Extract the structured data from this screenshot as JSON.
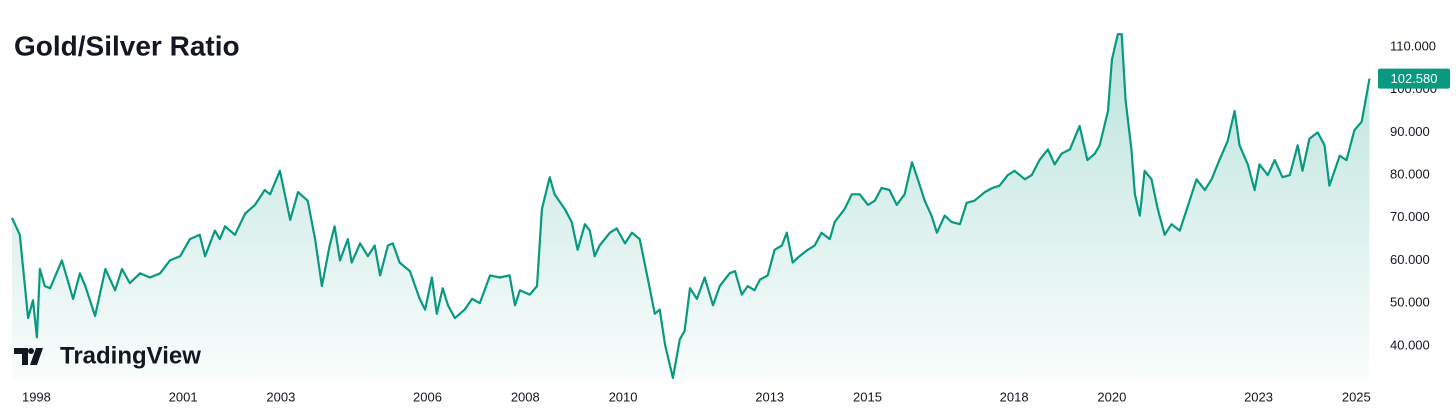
{
  "chart_data": {
    "type": "area",
    "title": "Gold/Silver Ratio",
    "watermark": "TradingView",
    "color": "#089981",
    "x": [
      1997.5,
      1997.66,
      1997.83,
      1997.93,
      1998.01,
      1998.07,
      1998.17,
      1998.28,
      1998.52,
      1998.75,
      1998.89,
      1999.0,
      1999.2,
      1999.41,
      1999.61,
      1999.75,
      1999.91,
      2000.12,
      2000.32,
      2000.53,
      2000.73,
      2000.94,
      2001.14,
      2001.34,
      2001.45,
      2001.65,
      2001.75,
      2001.86,
      2002.06,
      2002.27,
      2002.47,
      2002.67,
      2002.78,
      2002.98,
      2003.19,
      2003.35,
      2003.55,
      2003.7,
      2003.84,
      2004.0,
      2004.1,
      2004.21,
      2004.37,
      2004.45,
      2004.62,
      2004.78,
      2004.92,
      2005.03,
      2005.19,
      2005.29,
      2005.43,
      2005.64,
      2005.84,
      2005.95,
      2006.09,
      2006.19,
      2006.31,
      2006.42,
      2006.56,
      2006.76,
      2006.91,
      2007.07,
      2007.28,
      2007.48,
      2007.68,
      2007.79,
      2007.89,
      2008.09,
      2008.24,
      2008.34,
      2008.5,
      2008.6,
      2008.81,
      2008.95,
      2009.07,
      2009.22,
      2009.32,
      2009.42,
      2009.52,
      2009.73,
      2009.87,
      2010.04,
      2010.18,
      2010.34,
      2010.51,
      2010.65,
      2010.75,
      2010.86,
      2011.02,
      2011.16,
      2011.26,
      2011.37,
      2011.51,
      2011.67,
      2011.84,
      2011.98,
      2012.18,
      2012.29,
      2012.43,
      2012.55,
      2012.69,
      2012.8,
      2012.96,
      2013.1,
      2013.25,
      2013.35,
      2013.47,
      2013.61,
      2013.78,
      2013.92,
      2014.06,
      2014.23,
      2014.33,
      2014.53,
      2014.68,
      2014.84,
      2015.01,
      2015.15,
      2015.29,
      2015.45,
      2015.6,
      2015.76,
      2015.91,
      2016.03,
      2016.17,
      2016.31,
      2016.42,
      2016.58,
      2016.72,
      2016.89,
      2017.03,
      2017.19,
      2017.4,
      2017.56,
      2017.7,
      2017.87,
      2018.01,
      2018.22,
      2018.36,
      2018.52,
      2018.69,
      2018.83,
      2018.97,
      2019.14,
      2019.34,
      2019.5,
      2019.65,
      2019.75,
      2019.92,
      2020.0,
      2020.12,
      2020.2,
      2020.28,
      2020.4,
      2020.47,
      2020.57,
      2020.67,
      2020.81,
      2020.94,
      2021.08,
      2021.22,
      2021.39,
      2021.59,
      2021.73,
      2021.9,
      2022.04,
      2022.2,
      2022.37,
      2022.51,
      2022.61,
      2022.78,
      2022.92,
      2023.02,
      2023.19,
      2023.33,
      2023.49,
      2023.64,
      2023.8,
      2023.9,
      2024.04,
      2024.21,
      2024.35,
      2024.45,
      2024.66,
      2024.8,
      2024.96,
      2025.11,
      2025.27
    ],
    "values": [
      70,
      66,
      46.5,
      50.7,
      42,
      58,
      54,
      53.5,
      60,
      51,
      57,
      54,
      47,
      58,
      53,
      58,
      54.7,
      57,
      56,
      57,
      60,
      61,
      65,
      66,
      61,
      67,
      65,
      68,
      66,
      71,
      73,
      76.5,
      75.5,
      81,
      69.5,
      76,
      74,
      65,
      54,
      63.5,
      68,
      60,
      65,
      59.5,
      64,
      61,
      63.5,
      56.5,
      63.5,
      64,
      59.5,
      57.5,
      51,
      48.5,
      56,
      47.5,
      53.5,
      49.5,
      46.5,
      48.5,
      51,
      50,
      56.5,
      56,
      56.5,
      49.5,
      53,
      52,
      54,
      72,
      79.5,
      75.5,
      72,
      69,
      62.5,
      68.5,
      67,
      61,
      63.5,
      66.5,
      67.5,
      64,
      66.5,
      65,
      55.5,
      47.5,
      48.5,
      40.2,
      32.5,
      41.5,
      43.5,
      53.5,
      51,
      56,
      49.5,
      54,
      57,
      57.5,
      52,
      54,
      53,
      55.5,
      56.5,
      62.5,
      63.5,
      66.5,
      59.5,
      61,
      62.5,
      63.5,
      66.5,
      65,
      69,
      72,
      75.5,
      75.5,
      73,
      74,
      77,
      76.5,
      73,
      75.5,
      83,
      79,
      74,
      70.5,
      66.5,
      70.5,
      69,
      68.5,
      73.5,
      74,
      76,
      77,
      77.5,
      80,
      81,
      79,
      80,
      83.5,
      86,
      82.5,
      85,
      86,
      91.5,
      83.5,
      85,
      87,
      95,
      107,
      113,
      113,
      97.5,
      86,
      75.5,
      70.5,
      81,
      79,
      72,
      66,
      68.5,
      67,
      74,
      79,
      76.5,
      79,
      83.5,
      88,
      95,
      87,
      82.5,
      76.5,
      82.5,
      80,
      83.5,
      79.5,
      80,
      87,
      81,
      88.5,
      90,
      87,
      77.5,
      84.5,
      83.5,
      90.5,
      92.5,
      102.58
    ],
    "last_value_label": "102.580",
    "xlim": [
      1997.5,
      2025.28
    ],
    "xticks": [
      1998,
      2001,
      2003,
      2006,
      2008,
      2010,
      2013,
      2015,
      2018,
      2020,
      2023,
      2025
    ],
    "ylim": [
      32,
      121
    ],
    "yticks": [
      {
        "value": 110,
        "label": "110.000"
      },
      {
        "value": 100,
        "label": "100.000"
      },
      {
        "value": 90,
        "label": "90.000"
      },
      {
        "value": 80,
        "label": "80.000"
      },
      {
        "value": 70,
        "label": "70.000"
      },
      {
        "value": 60,
        "label": "60.000"
      },
      {
        "value": 50,
        "label": "50.000"
      },
      {
        "value": 40,
        "label": "40.000"
      }
    ],
    "grid": false
  }
}
